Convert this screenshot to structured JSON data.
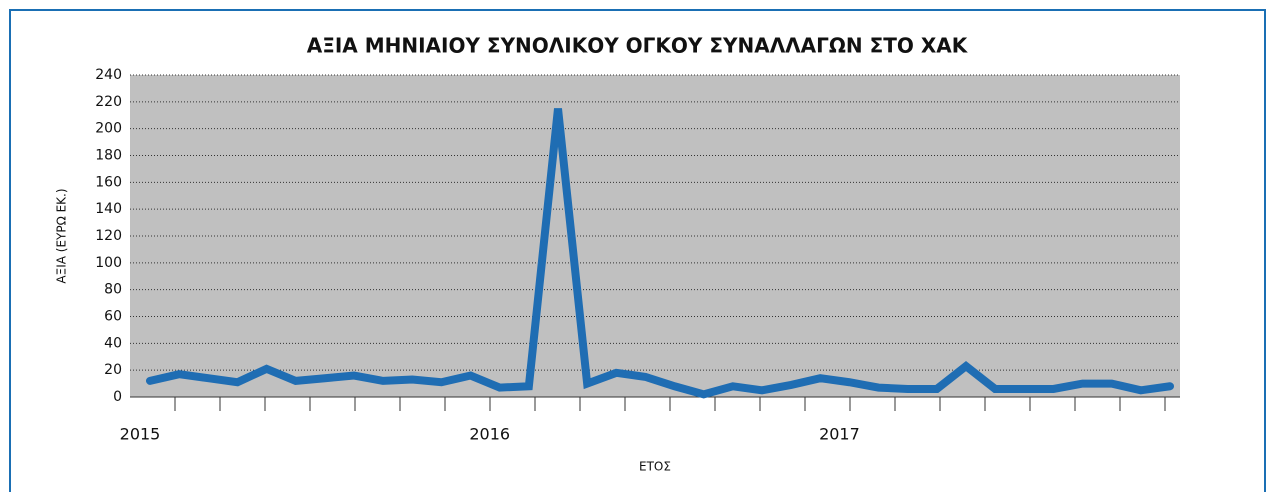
{
  "chart_data": {
    "type": "line",
    "title": "ΑΞΙΑ ΜΗΝΙΑΙΟΥ ΣΥΝΟΛΙΚΟΥ ΟΓΚΟΥ ΣΥΝΑΛΛΑΓΩΝ ΣΤΟ ΧΑΚ",
    "x_label": "ΕΤΟΣ",
    "y_label": "ΑΞΙΑ (ΕΥΡΩ ΕΚ.)",
    "categories": [
      "2015",
      null,
      null,
      null,
      null,
      null,
      null,
      null,
      null,
      null,
      null,
      null,
      "2016",
      null,
      null,
      null,
      null,
      null,
      null,
      null,
      null,
      null,
      null,
      null,
      "2017",
      null,
      null,
      null,
      null,
      null,
      null,
      null,
      null,
      null,
      null,
      null
    ],
    "series": [
      {
        "name": "ΑΞΙΑ",
        "color": "#1f6db3",
        "values": [
          12,
          17,
          14,
          11,
          21,
          12,
          14,
          16,
          12,
          13,
          11,
          16,
          7,
          8,
          215,
          10,
          18,
          15,
          8,
          2,
          8,
          5,
          9,
          14,
          11,
          7,
          6,
          6,
          23,
          6,
          6,
          6,
          10,
          10,
          5,
          8
        ]
      }
    ],
    "ylim": [
      0,
      240
    ],
    "yticks": [
      0,
      20,
      40,
      60,
      80,
      100,
      120,
      140,
      160,
      180,
      200,
      220,
      240
    ],
    "grid": true,
    "plot_background": "#c0c0c0",
    "title_color": "#1a6fb4"
  }
}
